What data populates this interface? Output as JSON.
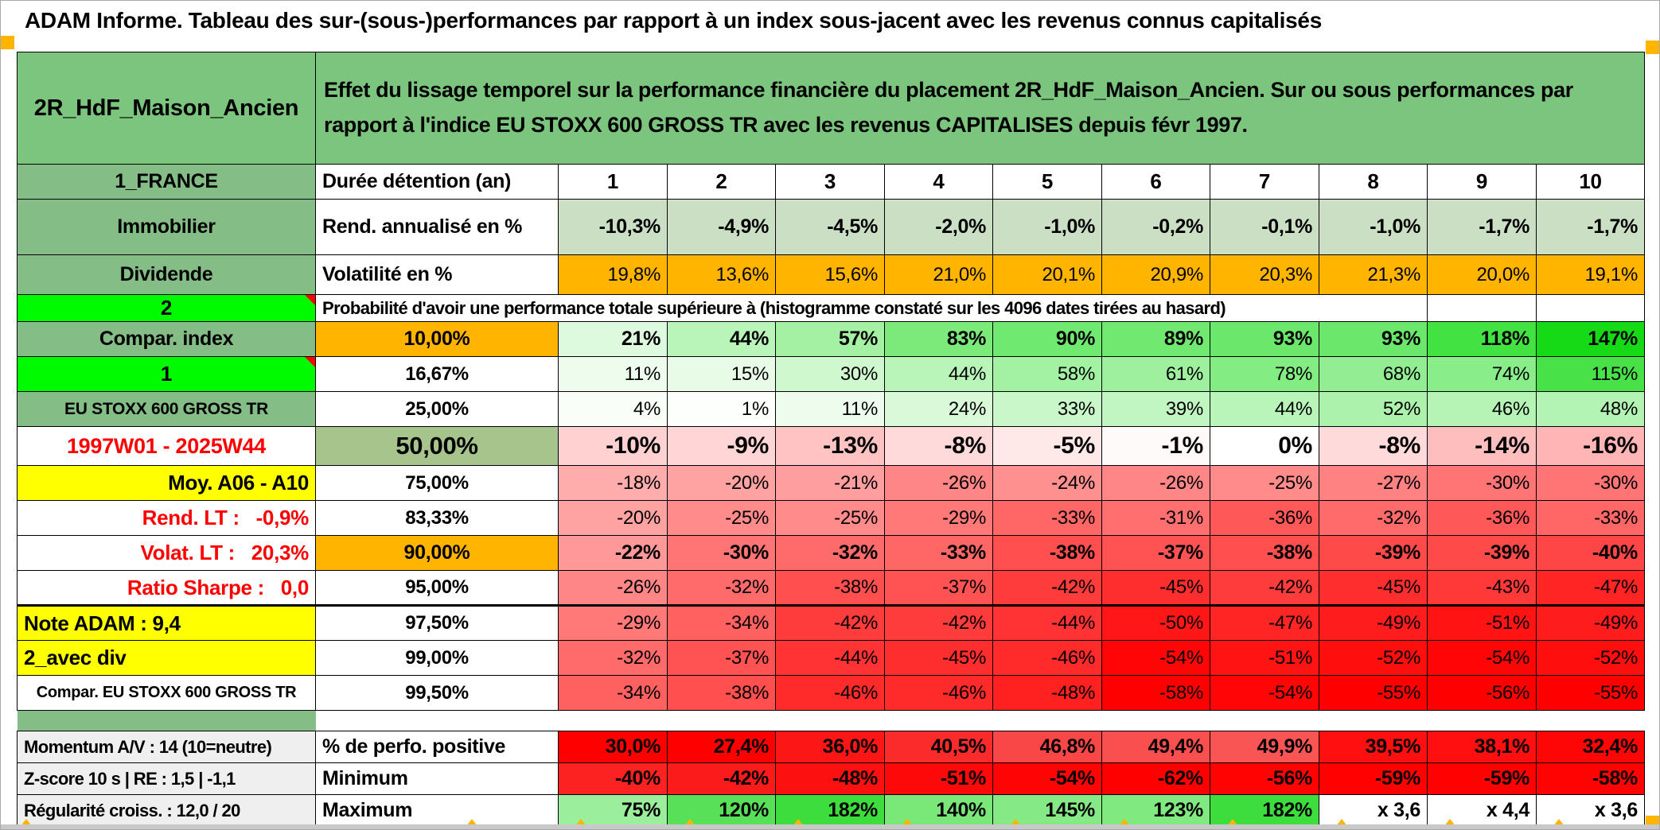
{
  "header": {
    "app_title": "ADAM Informe. Tableau des sur-(sous-)performances par rapport à un index sous-jacent avec les revenus connus capitalisés",
    "placement": "2R_HdF_Maison_Ancien",
    "description": "Effet du lissage temporel sur la performance financière du placement 2R_HdF_Maison_Ancien. Sur ou sous performances par rapport à l'indice EU STOXX 600 GROSS TR avec les revenus CAPITALISES depuis févr 1997."
  },
  "info": {
    "rows": [
      {
        "label": "1_FRANCE",
        "metric": "Durée détention (an)",
        "values": [
          "1",
          "2",
          "3",
          "4",
          "5",
          "6",
          "7",
          "8",
          "9",
          "10"
        ]
      },
      {
        "label": "Immobilier",
        "metric": "Rend. annualisé en %",
        "values": [
          "-10,3%",
          "-4,9%",
          "-4,5%",
          "-2,0%",
          "-1,0%",
          "-0,2%",
          "-0,1%",
          "-1,0%",
          "-1,7%",
          "-1,7%"
        ]
      },
      {
        "label": "Dividende",
        "metric": "Volatilité en %",
        "values": [
          "19,8%",
          "13,6%",
          "15,6%",
          "21,0%",
          "20,1%",
          "20,9%",
          "20,3%",
          "21,3%",
          "20,0%",
          "19,1%"
        ]
      }
    ]
  },
  "prob": {
    "header_label": "2",
    "header_text": "Probabilité d'avoir une performance totale supérieure à (histogramme constaté sur les 4096 dates tirées au hasard)",
    "rows": [
      {
        "label": "Compar. index",
        "label_style": "green",
        "threshold": "10,00%",
        "threshold_style": "orange",
        "bold": true,
        "values": [
          "21%",
          "44%",
          "57%",
          "83%",
          "90%",
          "89%",
          "93%",
          "93%",
          "118%",
          "147%"
        ]
      },
      {
        "label": "1",
        "label_style": "bright-green",
        "marker": true,
        "threshold": "16,67%",
        "values": [
          "11%",
          "15%",
          "30%",
          "44%",
          "58%",
          "61%",
          "78%",
          "68%",
          "74%",
          "115%"
        ]
      },
      {
        "label": "EU STOXX 600 GROSS TR",
        "label_style": "green-small",
        "threshold": "25,00%",
        "values": [
          "4%",
          "1%",
          "11%",
          "24%",
          "33%",
          "39%",
          "44%",
          "52%",
          "46%",
          "48%"
        ]
      },
      {
        "label": "1997W01 - 2025W44",
        "label_style": "red-center",
        "threshold": "50,00%",
        "threshold_style": "olive-big",
        "bold": true,
        "big": true,
        "values": [
          "-10%",
          "-9%",
          "-13%",
          "-8%",
          "-5%",
          "-1%",
          "0%",
          "-8%",
          "-14%",
          "-16%"
        ]
      },
      {
        "label": "Moy. A06 - A10",
        "label_style": "yellow-right",
        "threshold": "75,00%",
        "values": [
          "-18%",
          "-20%",
          "-21%",
          "-26%",
          "-24%",
          "-26%",
          "-25%",
          "-27%",
          "-30%",
          "-30%"
        ]
      },
      {
        "label": "Rend. LT :   -0,9%",
        "label_style": "red-right",
        "threshold": "83,33%",
        "values": [
          "-20%",
          "-25%",
          "-25%",
          "-29%",
          "-33%",
          "-31%",
          "-36%",
          "-32%",
          "-36%",
          "-33%"
        ]
      },
      {
        "label": "Volat. LT :   20,3%",
        "label_style": "red-right",
        "threshold": "90,00%",
        "threshold_style": "orange",
        "bold": true,
        "values": [
          "-22%",
          "-30%",
          "-32%",
          "-33%",
          "-38%",
          "-37%",
          "-38%",
          "-39%",
          "-39%",
          "-40%"
        ]
      },
      {
        "label": "Ratio Sharpe :   0,0",
        "label_style": "red-right",
        "threshold": "95,00%",
        "values": [
          "-26%",
          "-32%",
          "-38%",
          "-37%",
          "-42%",
          "-45%",
          "-42%",
          "-45%",
          "-43%",
          "-47%"
        ]
      },
      {
        "label": "Note ADAM : 9,4",
        "label_style": "yellow-left",
        "threshold": "97,50%",
        "thick_top": true,
        "values": [
          "-29%",
          "-34%",
          "-42%",
          "-42%",
          "-44%",
          "-50%",
          "-47%",
          "-49%",
          "-51%",
          "-49%"
        ]
      },
      {
        "label": "2_avec div",
        "label_style": "yellow-left",
        "threshold": "99,00%",
        "values": [
          "-32%",
          "-37%",
          "-44%",
          "-45%",
          "-46%",
          "-54%",
          "-51%",
          "-52%",
          "-54%",
          "-52%"
        ]
      },
      {
        "label": "Compar. EU STOXX 600 GROSS TR",
        "label_style": "white-center-small",
        "threshold": "99,50%",
        "values": [
          "-34%",
          "-38%",
          "-46%",
          "-46%",
          "-48%",
          "-58%",
          "-54%",
          "-55%",
          "-56%",
          "-55%"
        ]
      }
    ]
  },
  "footer": {
    "rows": [
      {
        "label": "Momentum A/V : 14 (10=neutre)",
        "metric": "% de perfo. positive",
        "values": [
          "30,0%",
          "27,4%",
          "36,0%",
          "40,5%",
          "46,8%",
          "49,4%",
          "49,9%",
          "39,5%",
          "38,1%",
          "32,4%"
        ],
        "colors": [
          "#ff0000",
          "#ff0000",
          "#fd1616",
          "#fb2b2b",
          "#f94747",
          "#f94f4f",
          "#fa5555",
          "#ff0f0f",
          "#ff0f0f",
          "#ff0606"
        ]
      },
      {
        "label": "Z-score 10 s | RE : 1,5 | -1,1",
        "metric": "Minimum",
        "values": [
          "-40%",
          "-42%",
          "-48%",
          "-51%",
          "-54%",
          "-62%",
          "-56%",
          "-59%",
          "-59%",
          "-58%"
        ],
        "colors": [
          "#fc2222",
          "#fb1b1b",
          "#fd1010",
          "#fe0909",
          "#ff0404",
          "#ff0000",
          "#ff0303",
          "#ff0101",
          "#ff0101",
          "#ff0303"
        ]
      },
      {
        "label": "Régularité croiss. : 12,0 / 20",
        "metric": "Maximum",
        "values": [
          "75%",
          "120%",
          "182%",
          "140%",
          "145%",
          "123%",
          "182%",
          "x 3,6",
          "x 4,4",
          "x 3,6"
        ],
        "colors": [
          "#9bee9b",
          "#58e158",
          "#3edd3e",
          "#79e879",
          "#85ea85",
          "#80e980",
          "#3edd3e",
          "#ffffff",
          "#ffffff",
          "#ffffff"
        ]
      }
    ]
  },
  "colors": {
    "title_green": "#7cc57e",
    "label_green": "#84bd86",
    "bright_green": "#00fb00",
    "light_green_row": "#cbdfc5",
    "orange": "#ffb400",
    "olive": "#a6c48b",
    "yellow": "#ffff00",
    "red_text": "#ff0000",
    "footer_label_bg": "#efefef",
    "frame_gray": "#c8c8c8",
    "marker_orange": "#ffb400"
  },
  "heat_scale": {
    "pos_max": 160,
    "neg_max": 55
  }
}
